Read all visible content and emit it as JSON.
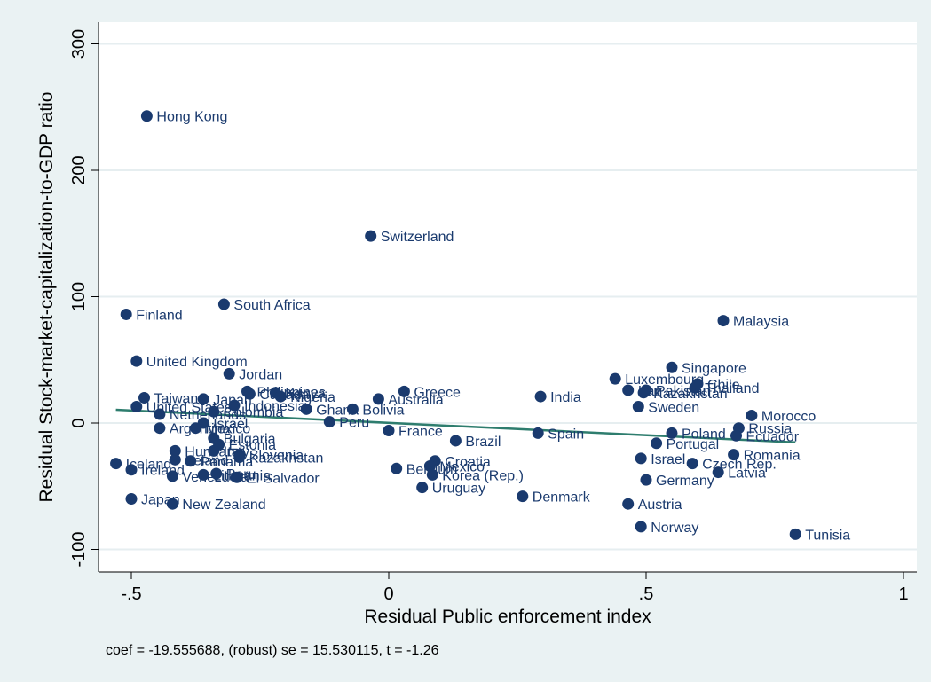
{
  "chart_data": {
    "type": "scatter",
    "xlabel": "Residual Public enforcement index",
    "ylabel": "Residual Stock-market-capitalization-to-GDP ratio",
    "xlim": [
      -0.56,
      1.0
    ],
    "ylim": [
      -115,
      310
    ],
    "xticks": [
      -0.5,
      0,
      0.5,
      1
    ],
    "xtick_labels": [
      "-.5",
      "0",
      ".5",
      "1"
    ],
    "yticks": [
      -100,
      0,
      100,
      200,
      300
    ],
    "ytick_labels": [
      "-100",
      "0",
      "100",
      "200",
      "300"
    ],
    "grid": "horizontal",
    "note": "coef = -19.555688, (robust) se = 15.530115, t = -1.26",
    "fit_line": {
      "x": [
        -0.53,
        0.79
      ],
      "y": [
        10.5,
        -15.3
      ]
    },
    "points": [
      {
        "label": "Hong Kong",
        "x": -0.47,
        "y": 243
      },
      {
        "label": "Switzerland",
        "x": -0.035,
        "y": 148
      },
      {
        "label": "South Africa",
        "x": -0.32,
        "y": 94
      },
      {
        "label": "Finland",
        "x": -0.51,
        "y": 86
      },
      {
        "label": "Malaysia",
        "x": 0.65,
        "y": 81
      },
      {
        "label": "United Kingdom",
        "x": -0.49,
        "y": 49
      },
      {
        "label": "Singapore",
        "x": 0.55,
        "y": 44
      },
      {
        "label": "Jordan",
        "x": -0.31,
        "y": 39
      },
      {
        "label": "Luxembourg",
        "x": 0.44,
        "y": 35
      },
      {
        "label": "Chile",
        "x": 0.6,
        "y": 31
      },
      {
        "label": "Thailand",
        "x": 0.595,
        "y": 28
      },
      {
        "label": "Pakistan",
        "x": 0.5,
        "y": 26
      },
      {
        "label": "Iran",
        "x": 0.465,
        "y": 26
      },
      {
        "label": "Kazakhstan",
        "x": 0.495,
        "y": 24
      },
      {
        "label": "Philippines",
        "x": -0.275,
        "y": 25
      },
      {
        "label": "Kenya",
        "x": -0.22,
        "y": 24
      },
      {
        "label": "Greece",
        "x": 0.03,
        "y": 25
      },
      {
        "label": "Canada",
        "x": -0.27,
        "y": 23
      },
      {
        "label": "Nigeria",
        "x": -0.21,
        "y": 21
      },
      {
        "label": "Australia",
        "x": -0.02,
        "y": 19
      },
      {
        "label": "India",
        "x": 0.295,
        "y": 21
      },
      {
        "label": "Taiwan",
        "x": -0.475,
        "y": 20
      },
      {
        "label": "Japan",
        "x": -0.36,
        "y": 19
      },
      {
        "label": "United States",
        "x": -0.49,
        "y": 13
      },
      {
        "label": "Indonesia",
        "x": -0.3,
        "y": 14
      },
      {
        "label": "Colombia",
        "x": -0.34,
        "y": 9
      },
      {
        "label": "Ghana",
        "x": -0.16,
        "y": 11
      },
      {
        "label": "Bolivia",
        "x": -0.07,
        "y": 11
      },
      {
        "label": "Netherlands",
        "x": -0.445,
        "y": 7
      },
      {
        "label": "Sweden",
        "x": 0.485,
        "y": 13
      },
      {
        "label": "Morocco",
        "x": 0.705,
        "y": 6
      },
      {
        "label": "Peru",
        "x": -0.115,
        "y": 1
      },
      {
        "label": "Israel",
        "x": -0.36,
        "y": 0
      },
      {
        "label": "Argentina",
        "x": -0.445,
        "y": -4
      },
      {
        "label": "Mexico",
        "x": -0.375,
        "y": -4
      },
      {
        "label": "France",
        "x": 0.0,
        "y": -6
      },
      {
        "label": "Russia",
        "x": 0.68,
        "y": -4
      },
      {
        "label": "Poland",
        "x": 0.55,
        "y": -8
      },
      {
        "label": "Spain",
        "x": 0.29,
        "y": -8
      },
      {
        "label": "Ecuador",
        "x": 0.675,
        "y": -10
      },
      {
        "label": "Bulgaria",
        "x": -0.34,
        "y": -12
      },
      {
        "label": "Brazil",
        "x": 0.13,
        "y": -14
      },
      {
        "label": "Portugal",
        "x": 0.52,
        "y": -16
      },
      {
        "label": "Estonia",
        "x": -0.33,
        "y": -17
      },
      {
        "label": "Hungary",
        "x": -0.415,
        "y": -22
      },
      {
        "label": "Italy",
        "x": -0.34,
        "y": -22
      },
      {
        "label": "Romania",
        "x": 0.67,
        "y": -25
      },
      {
        "label": "Slovenia",
        "x": -0.29,
        "y": -25
      },
      {
        "label": "Kazakhstan",
        "x": -0.29,
        "y": -27
      },
      {
        "label": "Ireland",
        "x": -0.415,
        "y": -29
      },
      {
        "label": "Iceland",
        "x": -0.53,
        "y": -32
      },
      {
        "label": "Panama",
        "x": -0.385,
        "y": -30
      },
      {
        "label": "Croatia",
        "x": 0.09,
        "y": -30
      },
      {
        "label": "Israel",
        "x": 0.49,
        "y": -28
      },
      {
        "label": "Czech Rep.",
        "x": 0.59,
        "y": -32
      },
      {
        "label": "Belgium",
        "x": 0.015,
        "y": -36
      },
      {
        "label": "Mexico",
        "x": 0.08,
        "y": -34
      },
      {
        "label": "Ireland",
        "x": -0.5,
        "y": -37
      },
      {
        "label": "Korea (Rep.)",
        "x": 0.085,
        "y": -41
      },
      {
        "label": "Latvia",
        "x": 0.64,
        "y": -39
      },
      {
        "label": "Venezuela",
        "x": -0.42,
        "y": -42
      },
      {
        "label": "Lithuania",
        "x": -0.36,
        "y": -41
      },
      {
        "label": "Peru",
        "x": -0.335,
        "y": -40
      },
      {
        "label": "El Salvador",
        "x": -0.295,
        "y": -43
      },
      {
        "label": "Germany",
        "x": 0.5,
        "y": -45
      },
      {
        "label": "Uruguay",
        "x": 0.065,
        "y": -51
      },
      {
        "label": "Denmark",
        "x": 0.26,
        "y": -58
      },
      {
        "label": "Japan",
        "x": -0.5,
        "y": -60
      },
      {
        "label": "New Zealand",
        "x": -0.42,
        "y": -64
      },
      {
        "label": "Austria",
        "x": 0.465,
        "y": -64
      },
      {
        "label": "Norway",
        "x": 0.49,
        "y": -82
      },
      {
        "label": "Tunisia",
        "x": 0.79,
        "y": -88
      }
    ]
  }
}
